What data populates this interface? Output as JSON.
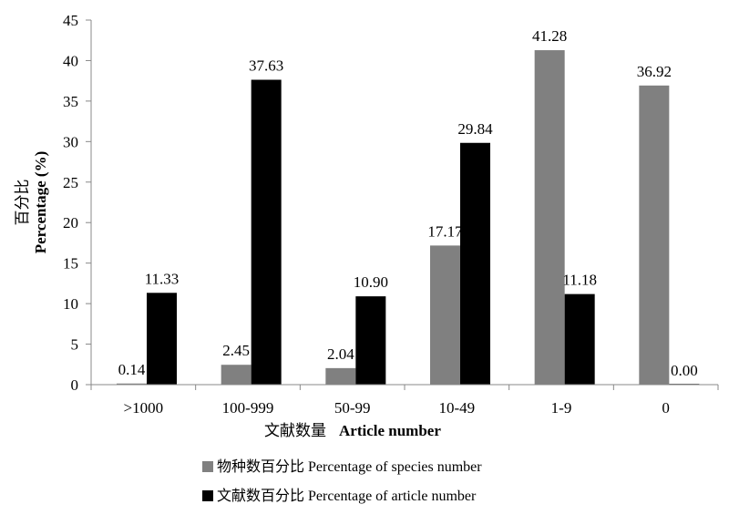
{
  "chart_data": {
    "type": "bar",
    "categories": [
      ">1000",
      "100-999",
      "50-99",
      "10-49",
      "1-9",
      "0"
    ],
    "series": [
      {
        "name": "物种数百分比  Percentage of species number",
        "values": [
          0.14,
          2.45,
          2.04,
          17.17,
          41.28,
          36.92
        ],
        "labels": [
          "0.14",
          "2.45",
          "2.04",
          "17.17",
          "41.28",
          "36.92"
        ],
        "color": "#808080"
      },
      {
        "name": "文献数百分比  Percentage of article number",
        "values": [
          11.33,
          37.63,
          10.9,
          29.84,
          11.18,
          0.0
        ],
        "labels": [
          "11.33",
          "37.63",
          "10.90",
          "29.84",
          "11.18",
          "0.00"
        ],
        "color": "#000000"
      }
    ],
    "title": "",
    "xlabel_cn": "文献数量",
    "xlabel_en": "Article number",
    "ylabel_cn": "百分比",
    "ylabel_en": "Percentage (%)",
    "ylim": [
      0,
      45
    ],
    "yticks": [
      "0",
      "5",
      "10",
      "15",
      "20",
      "25",
      "30",
      "35",
      "40",
      "45"
    ],
    "grid": false,
    "legend_position": "bottom"
  }
}
